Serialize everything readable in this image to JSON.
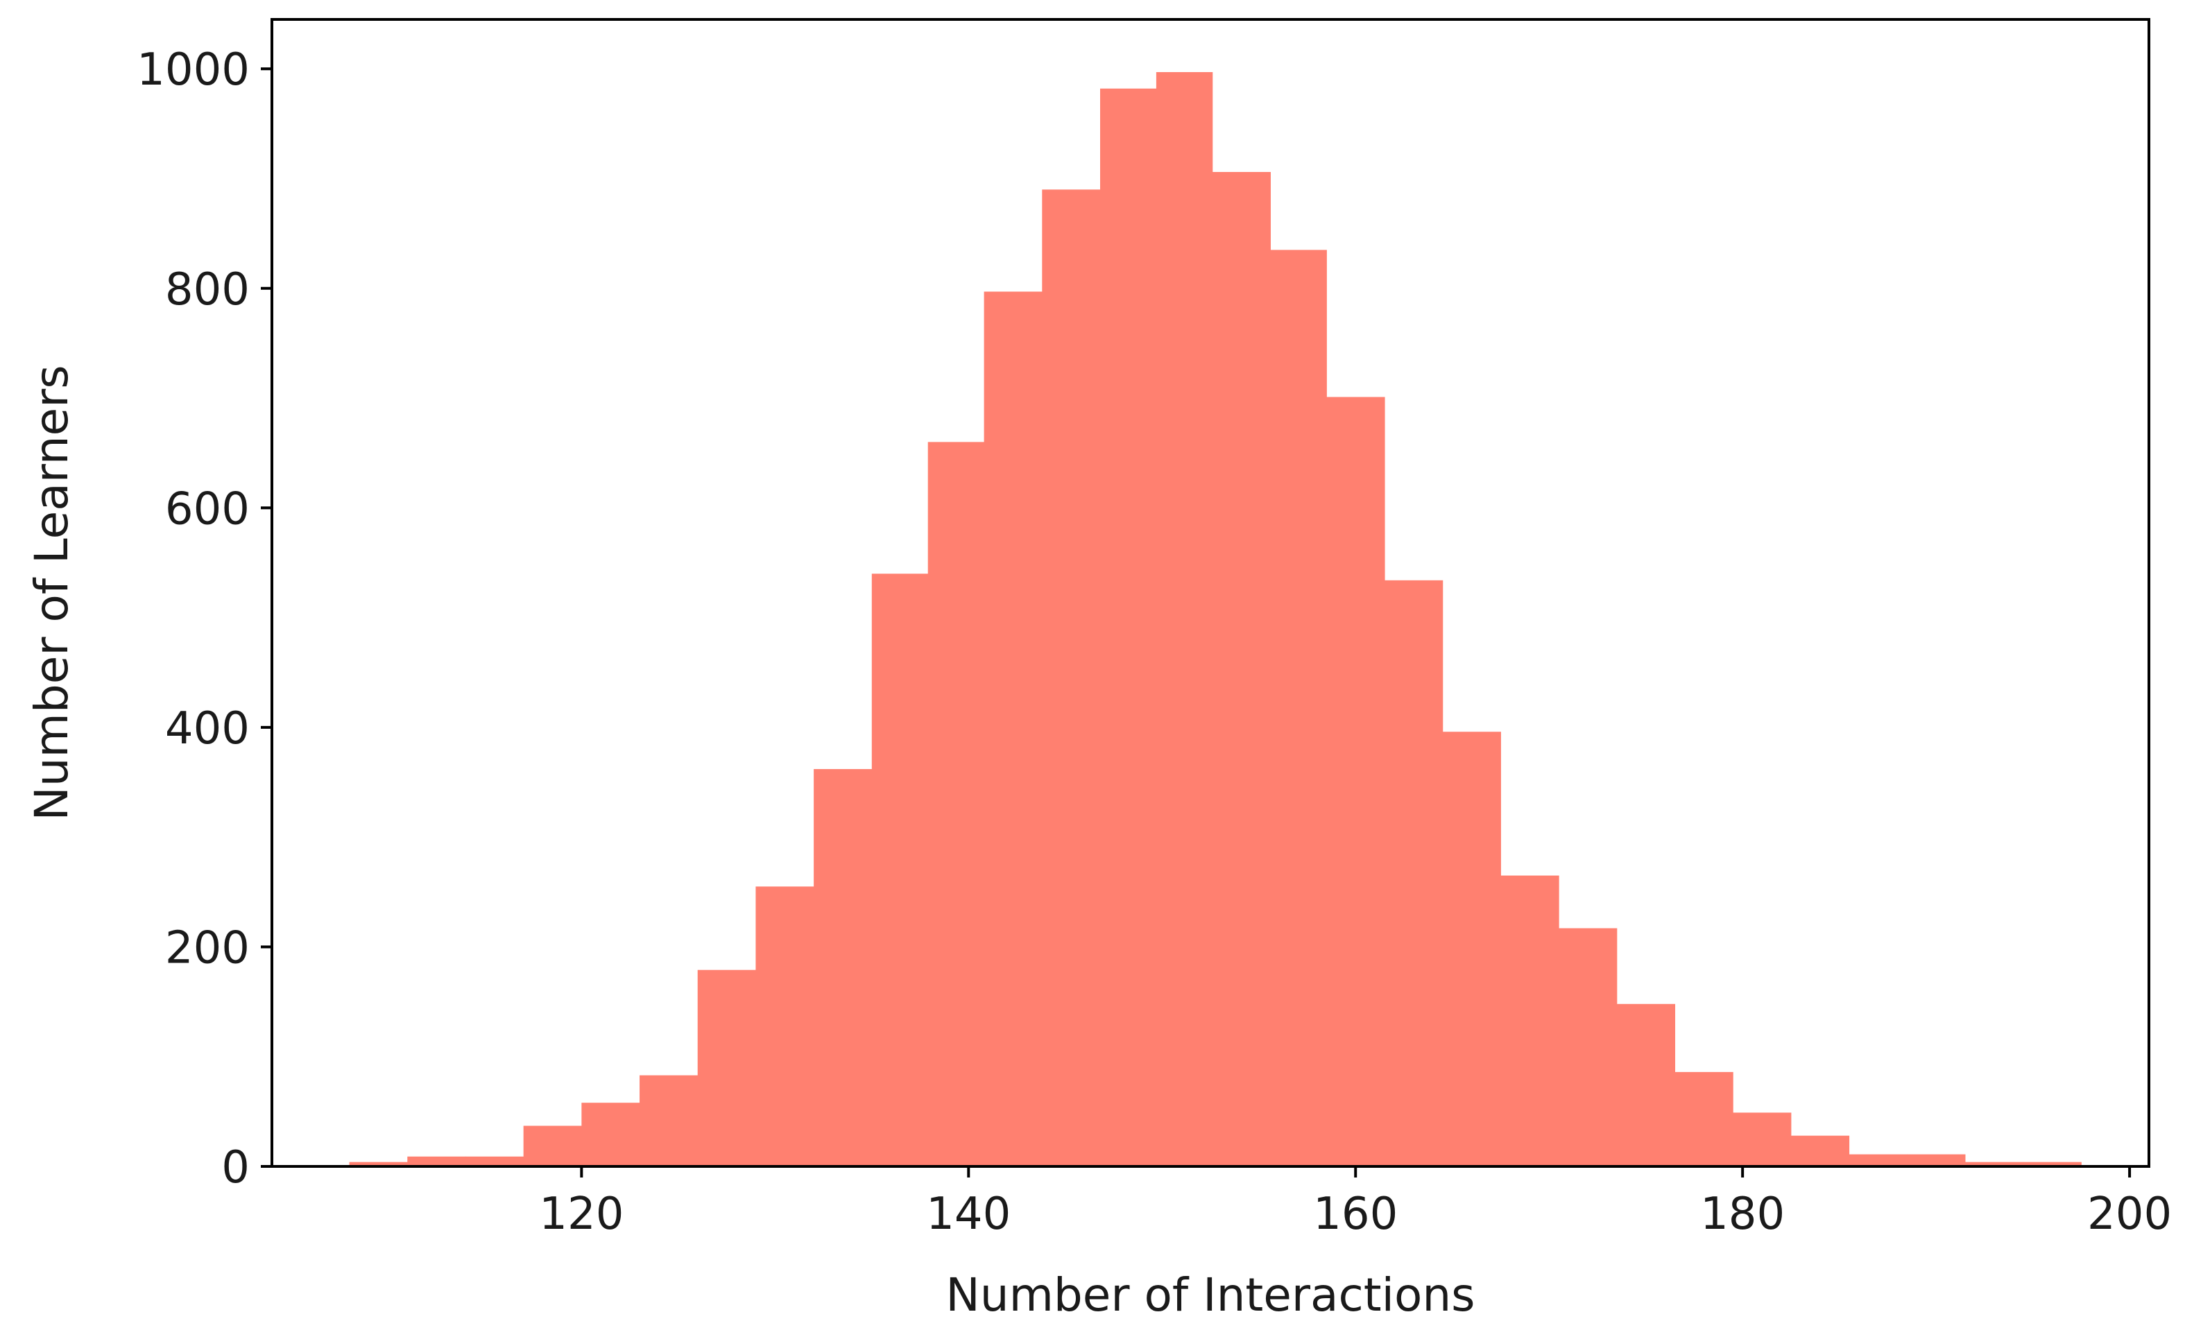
{
  "chart_data": {
    "type": "bar",
    "subtype": "histogram",
    "title": "",
    "xlabel": "Number of Interactions",
    "ylabel": "Number of Learners",
    "bar_color": "#FF8070",
    "axis_color": "#000000",
    "grid": false,
    "legend": "none",
    "xlim": [
      104,
      201
    ],
    "ylim": [
      0,
      1045
    ],
    "xticks": [
      120,
      140,
      160,
      180,
      200
    ],
    "yticks": [
      0,
      200,
      400,
      600,
      800,
      1000
    ],
    "bins": [
      {
        "start": 108.0,
        "end": 111.0,
        "count": 4
      },
      {
        "start": 111.0,
        "end": 114.0,
        "count": 9
      },
      {
        "start": 114.0,
        "end": 117.0,
        "count": 9
      },
      {
        "start": 117.0,
        "end": 120.0,
        "count": 37
      },
      {
        "start": 120.0,
        "end": 123.0,
        "count": 58
      },
      {
        "start": 123.0,
        "end": 126.0,
        "count": 83
      },
      {
        "start": 126.0,
        "end": 129.0,
        "count": 179
      },
      {
        "start": 129.0,
        "end": 132.0,
        "count": 255
      },
      {
        "start": 132.0,
        "end": 135.0,
        "count": 362
      },
      {
        "start": 135.0,
        "end": 137.9,
        "count": 540
      },
      {
        "start": 137.9,
        "end": 140.8,
        "count": 660
      },
      {
        "start": 140.8,
        "end": 143.8,
        "count": 797
      },
      {
        "start": 143.8,
        "end": 146.8,
        "count": 890
      },
      {
        "start": 146.8,
        "end": 149.7,
        "count": 982
      },
      {
        "start": 149.7,
        "end": 152.6,
        "count": 997
      },
      {
        "start": 152.6,
        "end": 155.6,
        "count": 906
      },
      {
        "start": 155.6,
        "end": 158.5,
        "count": 835
      },
      {
        "start": 158.5,
        "end": 161.5,
        "count": 701
      },
      {
        "start": 161.5,
        "end": 164.5,
        "count": 534
      },
      {
        "start": 164.5,
        "end": 167.5,
        "count": 396
      },
      {
        "start": 167.5,
        "end": 170.5,
        "count": 265
      },
      {
        "start": 170.5,
        "end": 173.5,
        "count": 217
      },
      {
        "start": 173.5,
        "end": 176.5,
        "count": 148
      },
      {
        "start": 176.5,
        "end": 179.5,
        "count": 86
      },
      {
        "start": 179.5,
        "end": 182.5,
        "count": 49
      },
      {
        "start": 182.5,
        "end": 185.5,
        "count": 28
      },
      {
        "start": 185.5,
        "end": 188.5,
        "count": 11
      },
      {
        "start": 188.5,
        "end": 191.5,
        "count": 11
      },
      {
        "start": 191.5,
        "end": 194.5,
        "count": 4
      },
      {
        "start": 194.5,
        "end": 197.5,
        "count": 4
      }
    ]
  }
}
